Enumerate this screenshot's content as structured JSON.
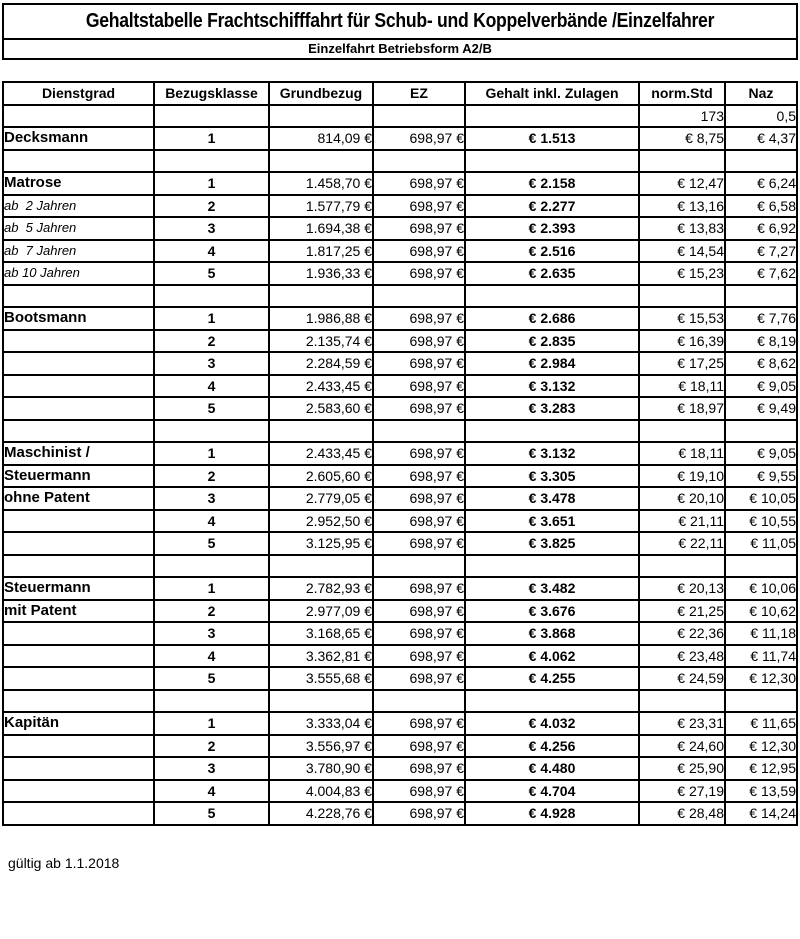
{
  "title": "Gehaltstabelle Frachtschifffahrt  für Schub- und Koppelverbände /Einzelfahrer",
  "subtitle": "Einzelfahrt Betriebsform A2/B",
  "footer": "gültig ab 1.1.2018",
  "table": {
    "columns": [
      "Dienstgrad",
      "Bezugsklasse",
      "Grundbezug",
      "EZ",
      "Gehalt inkl. Zulagen",
      "norm.Std",
      "Naz"
    ],
    "column_keys": [
      "dienstgrad",
      "bezugsklasse",
      "grundbezug",
      "ez",
      "gehalt",
      "norm_std",
      "naz"
    ],
    "rows": [
      {
        "style": "",
        "dienstgrad": "",
        "bezugsklasse": "",
        "grundbezug": "",
        "ez": "",
        "gehalt": "",
        "norm_std": "173",
        "naz": "0,5"
      },
      {
        "style": "rank",
        "dienstgrad": "Decksmann",
        "bezugsklasse": "1",
        "grundbezug": "814,09 €",
        "ez": "698,97 €",
        "gehalt": "€ 1.513",
        "norm_std": "€ 8,75",
        "naz": "€ 4,37"
      },
      {
        "style": "",
        "dienstgrad": "",
        "bezugsklasse": "",
        "grundbezug": "",
        "ez": "",
        "gehalt": "",
        "norm_std": "",
        "naz": ""
      },
      {
        "style": "rank",
        "dienstgrad": "Matrose",
        "bezugsklasse": "1",
        "grundbezug": "1.458,70 €",
        "ez": "698,97 €",
        "gehalt": "€ 2.158",
        "norm_std": "€ 12,47",
        "naz": "€ 6,24"
      },
      {
        "style": "note",
        "dienstgrad": "ab  2 Jahren",
        "bezugsklasse": "2",
        "grundbezug": "1.577,79 €",
        "ez": "698,97 €",
        "gehalt": "€ 2.277",
        "norm_std": "€ 13,16",
        "naz": "€ 6,58"
      },
      {
        "style": "note",
        "dienstgrad": "ab  5 Jahren",
        "bezugsklasse": "3",
        "grundbezug": "1.694,38 €",
        "ez": "698,97 €",
        "gehalt": "€ 2.393",
        "norm_std": "€ 13,83",
        "naz": "€ 6,92"
      },
      {
        "style": "note",
        "dienstgrad": "ab  7 Jahren",
        "bezugsklasse": "4",
        "grundbezug": "1.817,25 €",
        "ez": "698,97 €",
        "gehalt": "€ 2.516",
        "norm_std": "€ 14,54",
        "naz": "€ 7,27"
      },
      {
        "style": "note",
        "dienstgrad": "ab 10 Jahren",
        "bezugsklasse": "5",
        "grundbezug": "1.936,33 €",
        "ez": "698,97 €",
        "gehalt": "€ 2.635",
        "norm_std": "€ 15,23",
        "naz": "€ 7,62"
      },
      {
        "style": "",
        "dienstgrad": "",
        "bezugsklasse": "",
        "grundbezug": "",
        "ez": "",
        "gehalt": "",
        "norm_std": "",
        "naz": ""
      },
      {
        "style": "rank",
        "dienstgrad": "Bootsmann",
        "bezugsklasse": "1",
        "grundbezug": "1.986,88 €",
        "ez": "698,97 €",
        "gehalt": "€ 2.686",
        "norm_std": "€ 15,53",
        "naz": "€ 7,76"
      },
      {
        "style": "",
        "dienstgrad": "",
        "bezugsklasse": "2",
        "grundbezug": "2.135,74 €",
        "ez": "698,97 €",
        "gehalt": "€ 2.835",
        "norm_std": "€ 16,39",
        "naz": "€ 8,19"
      },
      {
        "style": "",
        "dienstgrad": "",
        "bezugsklasse": "3",
        "grundbezug": "2.284,59 €",
        "ez": "698,97 €",
        "gehalt": "€ 2.984",
        "norm_std": "€ 17,25",
        "naz": "€ 8,62"
      },
      {
        "style": "",
        "dienstgrad": "",
        "bezugsklasse": "4",
        "grundbezug": "2.433,45 €",
        "ez": "698,97 €",
        "gehalt": "€ 3.132",
        "norm_std": "€ 18,11",
        "naz": "€ 9,05"
      },
      {
        "style": "",
        "dienstgrad": "",
        "bezugsklasse": "5",
        "grundbezug": "2.583,60 €",
        "ez": "698,97 €",
        "gehalt": "€ 3.283",
        "norm_std": "€ 18,97",
        "naz": "€ 9,49"
      },
      {
        "style": "",
        "dienstgrad": "",
        "bezugsklasse": "",
        "grundbezug": "",
        "ez": "",
        "gehalt": "",
        "norm_std": "",
        "naz": ""
      },
      {
        "style": "rank",
        "dienstgrad": "Maschinist /",
        "bezugsklasse": "1",
        "grundbezug": "2.433,45 €",
        "ez": "698,97 €",
        "gehalt": "€ 3.132",
        "norm_std": "€ 18,11",
        "naz": "€ 9,05"
      },
      {
        "style": "rank",
        "dienstgrad": "Steuermann",
        "bezugsklasse": "2",
        "grundbezug": "2.605,60 €",
        "ez": "698,97 €",
        "gehalt": "€ 3.305",
        "norm_std": "€ 19,10",
        "naz": "€ 9,55"
      },
      {
        "style": "rank",
        "dienstgrad": "ohne Patent",
        "bezugsklasse": "3",
        "grundbezug": "2.779,05 €",
        "ez": "698,97 €",
        "gehalt": "€ 3.478",
        "norm_std": "€ 20,10",
        "naz": "€ 10,05"
      },
      {
        "style": "",
        "dienstgrad": "",
        "bezugsklasse": "4",
        "grundbezug": "2.952,50 €",
        "ez": "698,97 €",
        "gehalt": "€ 3.651",
        "norm_std": "€ 21,11",
        "naz": "€ 10,55"
      },
      {
        "style": "",
        "dienstgrad": "",
        "bezugsklasse": "5",
        "grundbezug": "3.125,95 €",
        "ez": "698,97 €",
        "gehalt": "€ 3.825",
        "norm_std": "€ 22,11",
        "naz": "€ 11,05"
      },
      {
        "style": "",
        "dienstgrad": "",
        "bezugsklasse": "",
        "grundbezug": "",
        "ez": "",
        "gehalt": "",
        "norm_std": "",
        "naz": ""
      },
      {
        "style": "rank",
        "dienstgrad": "Steuermann",
        "bezugsklasse": "1",
        "grundbezug": "2.782,93 €",
        "ez": "698,97 €",
        "gehalt": "€ 3.482",
        "norm_std": "€ 20,13",
        "naz": "€ 10,06"
      },
      {
        "style": "rank",
        "dienstgrad": "mit Patent",
        "bezugsklasse": "2",
        "grundbezug": "2.977,09 €",
        "ez": "698,97 €",
        "gehalt": "€ 3.676",
        "norm_std": "€ 21,25",
        "naz": "€ 10,62"
      },
      {
        "style": "",
        "dienstgrad": "",
        "bezugsklasse": "3",
        "grundbezug": "3.168,65 €",
        "ez": "698,97 €",
        "gehalt": "€ 3.868",
        "norm_std": "€ 22,36",
        "naz": "€ 11,18"
      },
      {
        "style": "",
        "dienstgrad": "",
        "bezugsklasse": "4",
        "grundbezug": "3.362,81 €",
        "ez": "698,97 €",
        "gehalt": "€ 4.062",
        "norm_std": "€ 23,48",
        "naz": "€ 11,74"
      },
      {
        "style": "",
        "dienstgrad": "",
        "bezugsklasse": "5",
        "grundbezug": "3.555,68 €",
        "ez": "698,97 €",
        "gehalt": "€ 4.255",
        "norm_std": "€ 24,59",
        "naz": "€ 12,30"
      },
      {
        "style": "",
        "dienstgrad": "",
        "bezugsklasse": "",
        "grundbezug": "",
        "ez": "",
        "gehalt": "",
        "norm_std": "",
        "naz": ""
      },
      {
        "style": "rank",
        "dienstgrad": "Kapitän",
        "bezugsklasse": "1",
        "grundbezug": "3.333,04 €",
        "ez": "698,97 €",
        "gehalt": "€ 4.032",
        "norm_std": "€ 23,31",
        "naz": "€ 11,65"
      },
      {
        "style": "",
        "dienstgrad": "",
        "bezugsklasse": "2",
        "grundbezug": "3.556,97 €",
        "ez": "698,97 €",
        "gehalt": "€ 4.256",
        "norm_std": "€ 24,60",
        "naz": "€ 12,30"
      },
      {
        "style": "",
        "dienstgrad": "",
        "bezugsklasse": "3",
        "grundbezug": "3.780,90 €",
        "ez": "698,97 €",
        "gehalt": "€ 4.480",
        "norm_std": "€ 25,90",
        "naz": "€ 12,95"
      },
      {
        "style": "",
        "dienstgrad": "",
        "bezugsklasse": "4",
        "grundbezug": "4.004,83 €",
        "ez": "698,97 €",
        "gehalt": "€ 4.704",
        "norm_std": "€ 27,19",
        "naz": "€ 13,59"
      },
      {
        "style": "",
        "dienstgrad": "",
        "bezugsklasse": "5",
        "grundbezug": "4.228,76 €",
        "ez": "698,97 €",
        "gehalt": "€ 4.928",
        "norm_std": "€ 28,48",
        "naz": "€ 14,24"
      }
    ]
  }
}
